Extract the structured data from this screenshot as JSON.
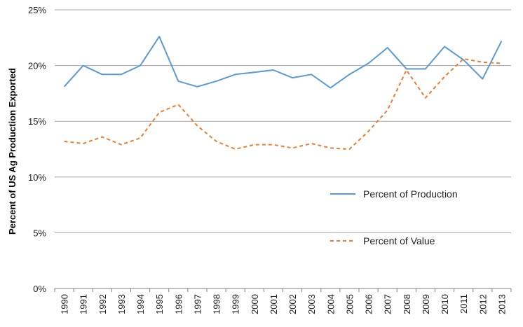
{
  "chart_data": {
    "type": "line",
    "title": "",
    "xlabel": "",
    "ylabel": "Percent of US Ag Production Exported",
    "ylim": [
      0,
      25
    ],
    "yticks": [
      "0%",
      "5%",
      "10%",
      "15%",
      "20%",
      "25%"
    ],
    "ytick_values": [
      0,
      5,
      10,
      15,
      20,
      25
    ],
    "grid": "horizontal",
    "legend_position": "center-right",
    "x": [
      "1990",
      "1991",
      "1992",
      "1993",
      "1994",
      "1995",
      "1996",
      "1997",
      "1998",
      "1999",
      "2000",
      "2001",
      "2002",
      "2003",
      "2004",
      "2005",
      "2006",
      "2007",
      "2008",
      "2009",
      "2010",
      "2011",
      "2012",
      "2013"
    ],
    "series": [
      {
        "name": "Percent of Production",
        "color": "#5b9bd5",
        "style": "solid",
        "values": [
          18.1,
          20.0,
          19.2,
          19.2,
          20.0,
          22.6,
          18.6,
          18.1,
          18.6,
          19.2,
          19.4,
          19.6,
          18.9,
          19.2,
          18.0,
          19.2,
          20.2,
          21.6,
          19.7,
          19.7,
          21.7,
          20.5,
          18.8,
          22.2
        ]
      },
      {
        "name": "Percent of Value",
        "color": "#ed7d31",
        "style": "dashed",
        "values": [
          13.2,
          13.0,
          13.6,
          12.9,
          13.5,
          15.8,
          16.5,
          14.6,
          13.2,
          12.5,
          12.9,
          12.9,
          12.6,
          13.0,
          12.6,
          12.5,
          14.1,
          16.0,
          19.6,
          17.1,
          19.0,
          20.6,
          20.3,
          20.2
        ]
      }
    ]
  }
}
